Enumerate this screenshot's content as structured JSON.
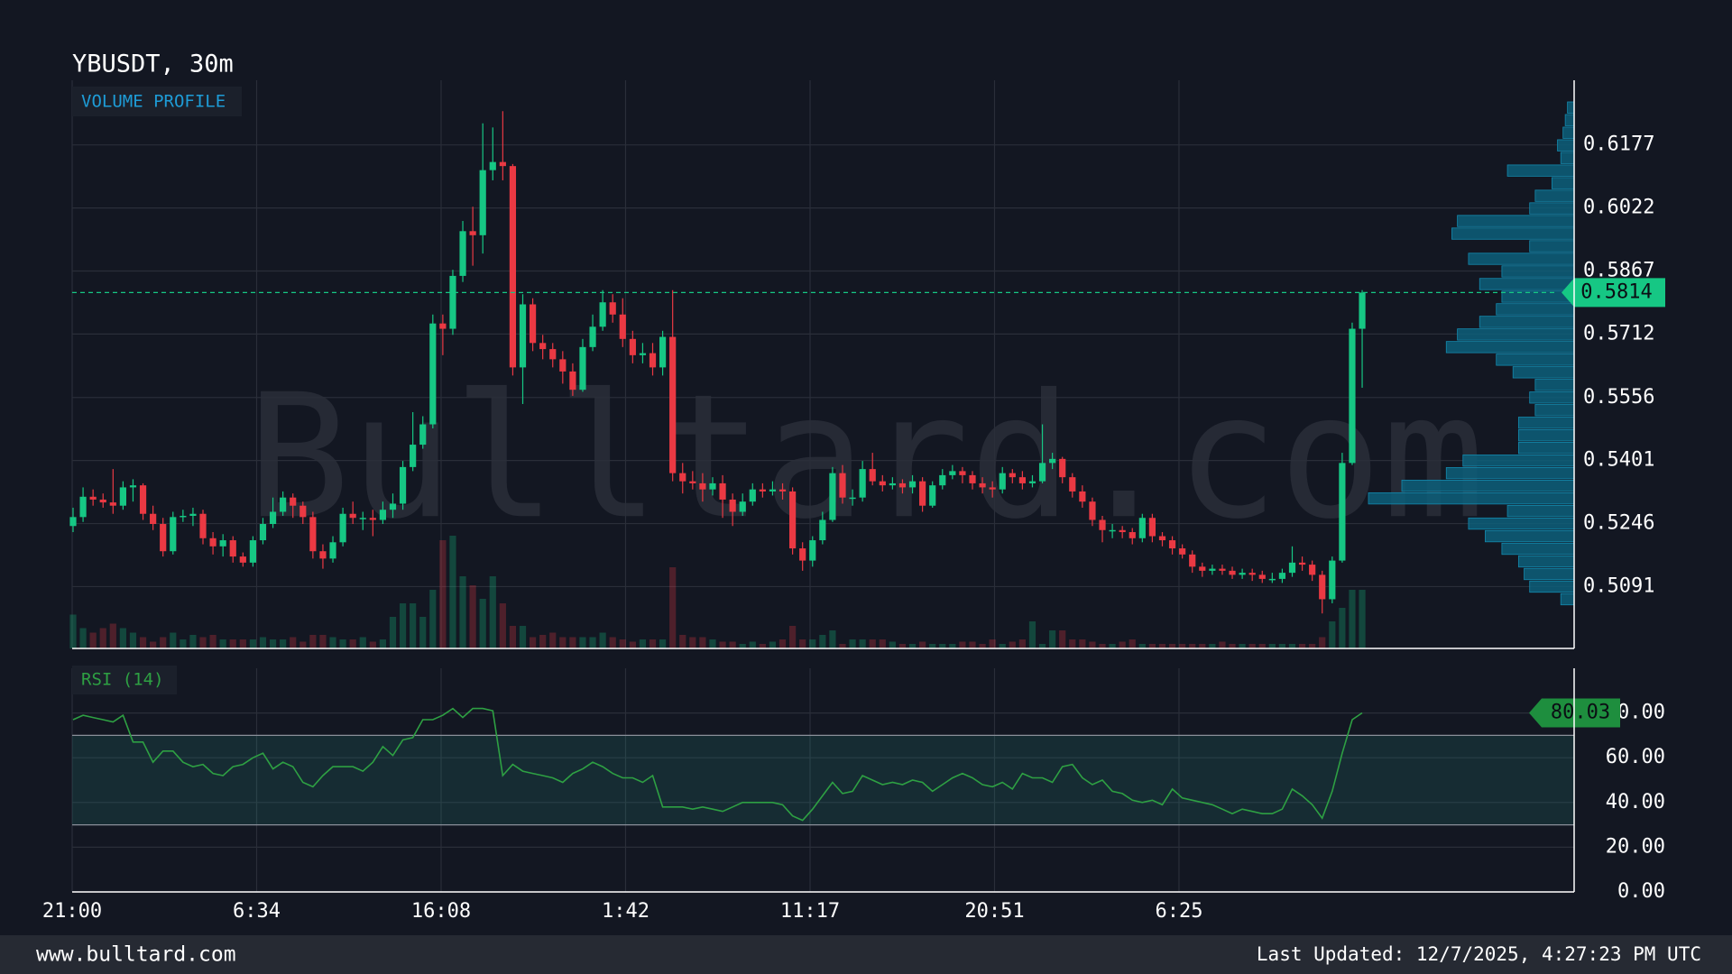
{
  "chart_data": {
    "type": "candlestick",
    "title": "YBUSDT, 30m",
    "up_color": "#16c784",
    "down_color": "#ea3943",
    "grid": true,
    "ohlc": [
      [
        0.524,
        0.5285,
        0.5225,
        0.5262
      ],
      [
        0.5262,
        0.5335,
        0.525,
        0.5312
      ],
      [
        0.5312,
        0.533,
        0.529,
        0.5305
      ],
      [
        0.5305,
        0.532,
        0.5285,
        0.5298
      ],
      [
        0.5298,
        0.538,
        0.527,
        0.529
      ],
      [
        0.529,
        0.535,
        0.528,
        0.5335
      ],
      [
        0.5335,
        0.5355,
        0.53,
        0.534
      ],
      [
        0.534,
        0.5345,
        0.5255,
        0.527
      ],
      [
        0.527,
        0.529,
        0.523,
        0.5245
      ],
      [
        0.5245,
        0.526,
        0.5165,
        0.5178
      ],
      [
        0.5178,
        0.5275,
        0.517,
        0.5262
      ],
      [
        0.5262,
        0.528,
        0.525,
        0.5265
      ],
      [
        0.5265,
        0.5285,
        0.524,
        0.527
      ],
      [
        0.527,
        0.528,
        0.5195,
        0.521
      ],
      [
        0.521,
        0.5225,
        0.517,
        0.519
      ],
      [
        0.519,
        0.522,
        0.5165,
        0.5205
      ],
      [
        0.5205,
        0.5215,
        0.515,
        0.5165
      ],
      [
        0.5165,
        0.5175,
        0.514,
        0.515
      ],
      [
        0.515,
        0.5215,
        0.514,
        0.5205
      ],
      [
        0.5205,
        0.526,
        0.5195,
        0.5245
      ],
      [
        0.5245,
        0.531,
        0.5235,
        0.5275
      ],
      [
        0.5275,
        0.5325,
        0.5265,
        0.531
      ],
      [
        0.531,
        0.532,
        0.526,
        0.529
      ],
      [
        0.529,
        0.53,
        0.5245,
        0.5262
      ],
      [
        0.5262,
        0.5275,
        0.516,
        0.5178
      ],
      [
        0.5178,
        0.5195,
        0.5135,
        0.516
      ],
      [
        0.516,
        0.5215,
        0.515,
        0.52
      ],
      [
        0.52,
        0.5285,
        0.519,
        0.527
      ],
      [
        0.527,
        0.53,
        0.5245,
        0.526
      ],
      [
        0.526,
        0.5275,
        0.523,
        0.526
      ],
      [
        0.526,
        0.528,
        0.5215,
        0.5255
      ],
      [
        0.5255,
        0.53,
        0.5245,
        0.528
      ],
      [
        0.528,
        0.532,
        0.526,
        0.5295
      ],
      [
        0.5295,
        0.54,
        0.528,
        0.5385
      ],
      [
        0.5385,
        0.552,
        0.5375,
        0.544
      ],
      [
        0.544,
        0.551,
        0.543,
        0.549
      ],
      [
        0.549,
        0.576,
        0.548,
        0.5738
      ],
      [
        0.5738,
        0.576,
        0.566,
        0.5725
      ],
      [
        0.5725,
        0.587,
        0.571,
        0.5855
      ],
      [
        0.5855,
        0.599,
        0.584,
        0.5965
      ],
      [
        0.5965,
        0.6025,
        0.588,
        0.5955
      ],
      [
        0.5955,
        0.623,
        0.591,
        0.6115
      ],
      [
        0.6115,
        0.622,
        0.609,
        0.6135
      ],
      [
        0.6135,
        0.626,
        0.609,
        0.6125
      ],
      [
        0.6125,
        0.613,
        0.561,
        0.563
      ],
      [
        0.563,
        0.581,
        0.554,
        0.5785
      ],
      [
        0.5785,
        0.58,
        0.567,
        0.569
      ],
      [
        0.569,
        0.571,
        0.565,
        0.5675
      ],
      [
        0.5675,
        0.569,
        0.563,
        0.565
      ],
      [
        0.565,
        0.567,
        0.559,
        0.562
      ],
      [
        0.562,
        0.564,
        0.556,
        0.5575
      ],
      [
        0.5575,
        0.57,
        0.557,
        0.568
      ],
      [
        0.568,
        0.576,
        0.567,
        0.573
      ],
      [
        0.573,
        0.582,
        0.572,
        0.579
      ],
      [
        0.579,
        0.581,
        0.574,
        0.576
      ],
      [
        0.576,
        0.58,
        0.568,
        0.57
      ],
      [
        0.57,
        0.572,
        0.564,
        0.566
      ],
      [
        0.566,
        0.569,
        0.564,
        0.5665
      ],
      [
        0.5665,
        0.569,
        0.561,
        0.563
      ],
      [
        0.563,
        0.572,
        0.561,
        0.5705
      ],
      [
        0.5705,
        0.582,
        0.535,
        0.537
      ],
      [
        0.537,
        0.5395,
        0.532,
        0.535
      ],
      [
        0.535,
        0.5375,
        0.533,
        0.5345
      ],
      [
        0.5345,
        0.537,
        0.53,
        0.533
      ],
      [
        0.533,
        0.536,
        0.5315,
        0.5345
      ],
      [
        0.5345,
        0.5365,
        0.526,
        0.5305
      ],
      [
        0.5305,
        0.532,
        0.524,
        0.5275
      ],
      [
        0.5275,
        0.532,
        0.5265,
        0.53
      ],
      [
        0.53,
        0.5345,
        0.529,
        0.533
      ],
      [
        0.533,
        0.5345,
        0.531,
        0.5325
      ],
      [
        0.5325,
        0.535,
        0.5315,
        0.533
      ],
      [
        0.533,
        0.5345,
        0.5305,
        0.5325
      ],
      [
        0.5325,
        0.5335,
        0.517,
        0.5185
      ],
      [
        0.5185,
        0.52,
        0.513,
        0.5155
      ],
      [
        0.5155,
        0.5215,
        0.514,
        0.5205
      ],
      [
        0.5205,
        0.5275,
        0.5195,
        0.5255
      ],
      [
        0.5255,
        0.5385,
        0.525,
        0.537
      ],
      [
        0.537,
        0.539,
        0.5295,
        0.531
      ],
      [
        0.531,
        0.533,
        0.529,
        0.531
      ],
      [
        0.531,
        0.54,
        0.53,
        0.538
      ],
      [
        0.538,
        0.542,
        0.534,
        0.535
      ],
      [
        0.535,
        0.5365,
        0.5325,
        0.534
      ],
      [
        0.534,
        0.536,
        0.533,
        0.5345
      ],
      [
        0.5345,
        0.5355,
        0.532,
        0.5335
      ],
      [
        0.5335,
        0.5365,
        0.532,
        0.535
      ],
      [
        0.535,
        0.536,
        0.5275,
        0.529
      ],
      [
        0.529,
        0.535,
        0.5285,
        0.534
      ],
      [
        0.534,
        0.538,
        0.533,
        0.5365
      ],
      [
        0.5365,
        0.539,
        0.5355,
        0.5375
      ],
      [
        0.5375,
        0.5385,
        0.5345,
        0.5365
      ],
      [
        0.5365,
        0.5375,
        0.533,
        0.5345
      ],
      [
        0.5345,
        0.536,
        0.532,
        0.5335
      ],
      [
        0.5335,
        0.535,
        0.531,
        0.533
      ],
      [
        0.533,
        0.5385,
        0.532,
        0.537
      ],
      [
        0.537,
        0.538,
        0.5345,
        0.536
      ],
      [
        0.536,
        0.5375,
        0.533,
        0.5345
      ],
      [
        0.5345,
        0.5365,
        0.5335,
        0.535
      ],
      [
        0.535,
        0.549,
        0.5345,
        0.5395
      ],
      [
        0.5395,
        0.542,
        0.538,
        0.5405
      ],
      [
        0.5405,
        0.541,
        0.5345,
        0.536
      ],
      [
        0.536,
        0.537,
        0.531,
        0.5325
      ],
      [
        0.5325,
        0.534,
        0.5285,
        0.53
      ],
      [
        0.53,
        0.531,
        0.524,
        0.5255
      ],
      [
        0.5255,
        0.5265,
        0.52,
        0.523
      ],
      [
        0.523,
        0.5245,
        0.521,
        0.523
      ],
      [
        0.523,
        0.524,
        0.521,
        0.5225
      ],
      [
        0.5225,
        0.5235,
        0.5195,
        0.521
      ],
      [
        0.521,
        0.527,
        0.52,
        0.526
      ],
      [
        0.526,
        0.527,
        0.52,
        0.5215
      ],
      [
        0.5215,
        0.5225,
        0.519,
        0.5205
      ],
      [
        0.5205,
        0.5215,
        0.517,
        0.5185
      ],
      [
        0.5185,
        0.5195,
        0.516,
        0.517
      ],
      [
        0.517,
        0.518,
        0.5125,
        0.514
      ],
      [
        0.514,
        0.515,
        0.5115,
        0.513
      ],
      [
        0.513,
        0.5145,
        0.512,
        0.5135
      ],
      [
        0.5135,
        0.5145,
        0.512,
        0.513
      ],
      [
        0.513,
        0.514,
        0.511,
        0.512
      ],
      [
        0.512,
        0.5135,
        0.511,
        0.5125
      ],
      [
        0.5125,
        0.5135,
        0.5105,
        0.512
      ],
      [
        0.512,
        0.513,
        0.51,
        0.511
      ],
      [
        0.511,
        0.5125,
        0.51,
        0.511
      ],
      [
        0.511,
        0.5135,
        0.51,
        0.5125
      ],
      [
        0.5125,
        0.519,
        0.5115,
        0.515
      ],
      [
        0.515,
        0.5165,
        0.513,
        0.5145
      ],
      [
        0.5145,
        0.5155,
        0.5105,
        0.512
      ],
      [
        0.512,
        0.513,
        0.5025,
        0.506
      ],
      [
        0.506,
        0.5165,
        0.505,
        0.5155
      ],
      [
        0.5155,
        0.542,
        0.515,
        0.5395
      ],
      [
        0.5395,
        0.574,
        0.539,
        0.5725
      ],
      [
        0.5725,
        0.582,
        0.558,
        0.5814
      ]
    ],
    "volume": [
      15,
      9,
      7,
      9,
      11,
      9,
      7,
      5,
      3,
      5,
      7,
      4,
      6,
      5,
      6,
      4,
      4,
      4,
      4,
      5,
      4,
      4,
      5,
      3,
      6,
      6,
      5,
      4,
      4,
      5,
      3,
      4,
      14,
      20,
      20,
      14,
      26,
      48,
      50,
      32,
      28,
      22,
      32,
      20,
      10,
      10,
      5,
      6,
      7,
      5,
      5,
      5,
      5,
      7,
      5,
      4,
      3,
      4,
      4,
      4,
      36,
      6,
      5,
      5,
      4,
      3,
      3,
      2,
      3,
      2,
      3,
      4,
      10,
      4,
      4,
      6,
      8,
      2,
      4,
      4,
      4,
      4,
      3,
      2,
      2,
      3,
      2,
      2,
      2,
      3,
      3,
      2,
      4,
      2,
      3,
      4,
      12,
      2,
      8,
      8,
      4,
      4,
      3,
      2,
      2,
      3,
      4,
      2,
      2,
      2,
      2,
      2,
      2,
      2,
      2,
      3,
      2,
      2,
      2,
      2,
      2,
      2,
      2,
      2,
      2,
      5,
      12,
      18,
      26,
      26
    ],
    "volume_ylim": [
      0,
      50
    ],
    "ylim": [
      0.4939,
      0.6336
    ],
    "yticks": [
      0.5091,
      0.5246,
      0.5401,
      0.5556,
      0.5712,
      0.5867,
      0.6022,
      0.6177
    ],
    "xlim": [
      0,
      150.3
    ],
    "xticks": [
      {
        "value": 0,
        "label": "21:00"
      },
      {
        "value": 18.46,
        "label": "6:34"
      },
      {
        "value": 36.92,
        "label": "16:08"
      },
      {
        "value": 55.38,
        "label": "1:42"
      },
      {
        "value": 73.84,
        "label": "11:17"
      },
      {
        "value": 92.3,
        "label": "20:51"
      },
      {
        "value": 110.76,
        "label": "6:25"
      }
    ],
    "volume_profile": {
      "label": "VOLUME PROFILE",
      "color": "#0d5f7a",
      "bins": [
        0.5045,
        0.5076,
        0.5107,
        0.5138,
        0.5169,
        0.52,
        0.5231,
        0.5262,
        0.5293,
        0.5324,
        0.5355,
        0.5386,
        0.5417,
        0.5448,
        0.5479,
        0.551,
        0.5541,
        0.5572,
        0.5603,
        0.5634,
        0.5665,
        0.5696,
        0.5727,
        0.5758,
        0.5789,
        0.582,
        0.5851,
        0.5882,
        0.5913,
        0.5944,
        0.5975,
        0.6006,
        0.6037,
        0.6068,
        0.6099,
        0.613,
        0.6161,
        0.6192,
        0.6223,
        0.6254,
        0.6285
      ],
      "values": [
        12,
        40,
        45,
        50,
        65,
        80,
        95,
        60,
        185,
        155,
        115,
        100,
        50,
        50,
        50,
        35,
        40,
        35,
        55,
        70,
        115,
        105,
        85,
        70,
        65,
        85,
        65,
        95,
        40,
        110,
        105,
        40,
        35,
        20,
        60,
        12,
        15,
        10,
        8,
        6
      ]
    },
    "rsi": {
      "label": "RSI (14)",
      "color": "#2ea043",
      "ylim": [
        0,
        100
      ],
      "bands": [
        30,
        70
      ],
      "yticks": [
        {
          "value": 0,
          "label": "0.00"
        },
        {
          "value": 20,
          "label": "20.00"
        },
        {
          "value": 40,
          "label": "40.00"
        },
        {
          "value": 60,
          "label": "60.00"
        },
        {
          "value": 80,
          "label": "80.00"
        }
      ],
      "values": [
        77,
        79,
        78,
        77,
        76,
        79,
        67,
        67,
        58,
        63,
        63,
        58,
        56,
        57,
        53,
        52,
        56,
        57,
        60,
        62,
        55,
        58,
        56,
        49,
        47,
        52,
        56,
        56,
        56,
        54,
        58,
        65,
        61,
        68,
        69,
        77,
        77,
        79,
        82,
        78,
        82,
        82,
        81,
        52,
        57,
        54,
        53,
        52,
        51,
        49,
        53,
        55,
        58,
        56,
        53,
        51,
        51,
        49,
        52,
        38,
        38,
        38,
        37,
        38,
        37,
        36,
        38,
        40,
        40,
        40,
        40,
        39,
        34,
        32,
        37,
        43,
        49,
        44,
        45,
        52,
        50,
        48,
        49,
        48,
        50,
        49,
        45,
        48,
        51,
        53,
        51,
        48,
        47,
        49,
        46,
        53,
        51,
        51,
        49,
        56,
        57,
        51,
        48,
        50,
        45,
        44,
        41,
        40,
        41,
        39,
        46,
        42,
        41,
        40,
        39,
        37,
        35,
        37,
        36,
        35,
        35,
        37,
        46,
        43,
        39,
        33,
        45,
        62,
        77,
        80.03
      ]
    }
  },
  "watermark": "Bulltard.com",
  "footer": {
    "site": "www.bulltard.com",
    "updated": "Last Updated: 12/7/2025, 4:27:23 PM UTC"
  }
}
